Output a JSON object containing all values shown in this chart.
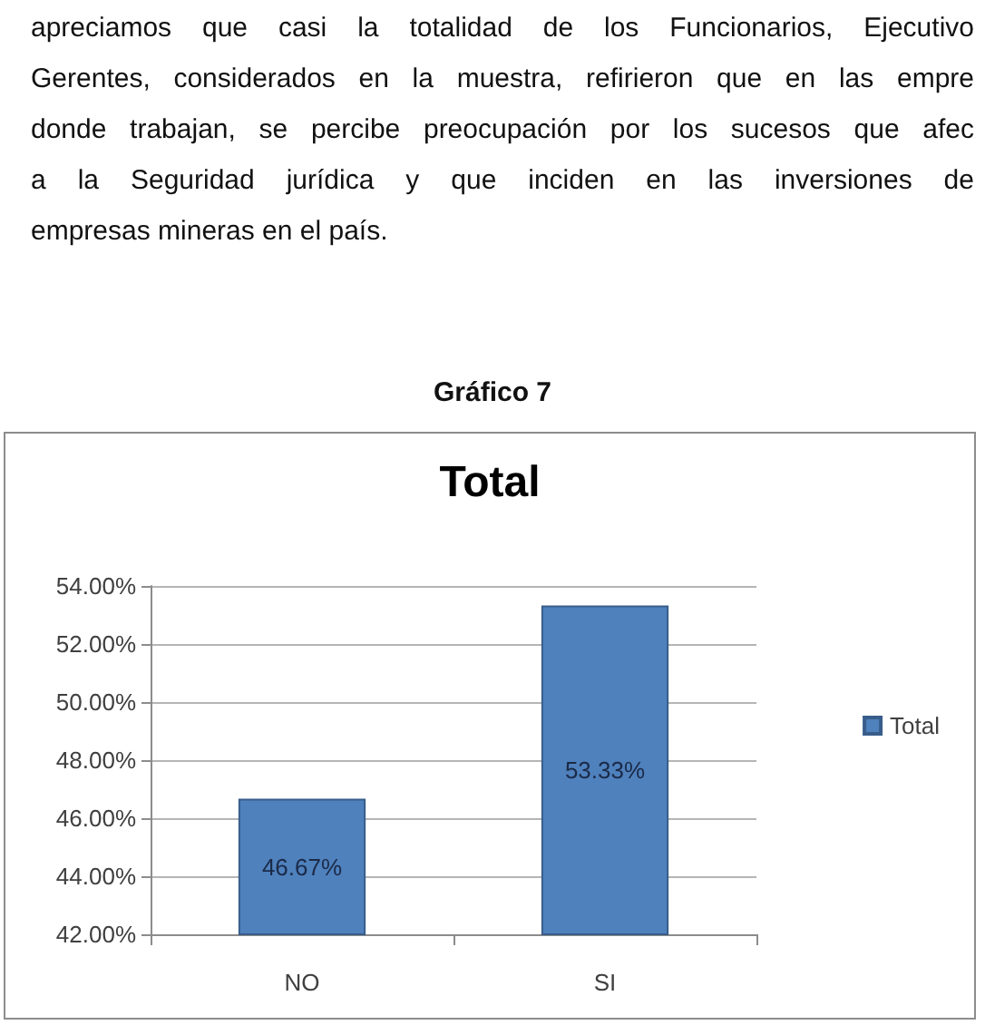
{
  "chart_data": {
    "type": "bar",
    "title": "Gráfico 7",
    "subtitle": "Total",
    "annotations": [
      "apreciamos que casi la totalidad de los Funcionarios, Ejecutivo",
      "Gerentes, considerados en la muestra, refirieron que en las empre",
      "donde trabajan, se percibe preocupación por los sucesos que afec",
      "a la Seguridad jurídica y que inciden en las inversiones de",
      "empresas mineras en el país."
    ],
    "categories": [
      "NO",
      "SI"
    ],
    "series": [
      {
        "name": "Total",
        "color": "#4f81bd",
        "values": [
          46.67,
          53.33
        ],
        "value_labels": [
          "46.67%",
          "53.33%"
        ]
      }
    ],
    "ylim": [
      42,
      54
    ],
    "yticks": [
      {
        "value": 42,
        "label": "42.00%"
      },
      {
        "value": 44,
        "label": "44.00%"
      },
      {
        "value": 46,
        "label": "46.00%"
      },
      {
        "value": 48,
        "label": "48.00%"
      },
      {
        "value": 50,
        "label": "50.00%"
      },
      {
        "value": 52,
        "label": "52.00%"
      },
      {
        "value": 54,
        "label": "54.00%"
      }
    ],
    "grid": "y",
    "legend": "right"
  }
}
